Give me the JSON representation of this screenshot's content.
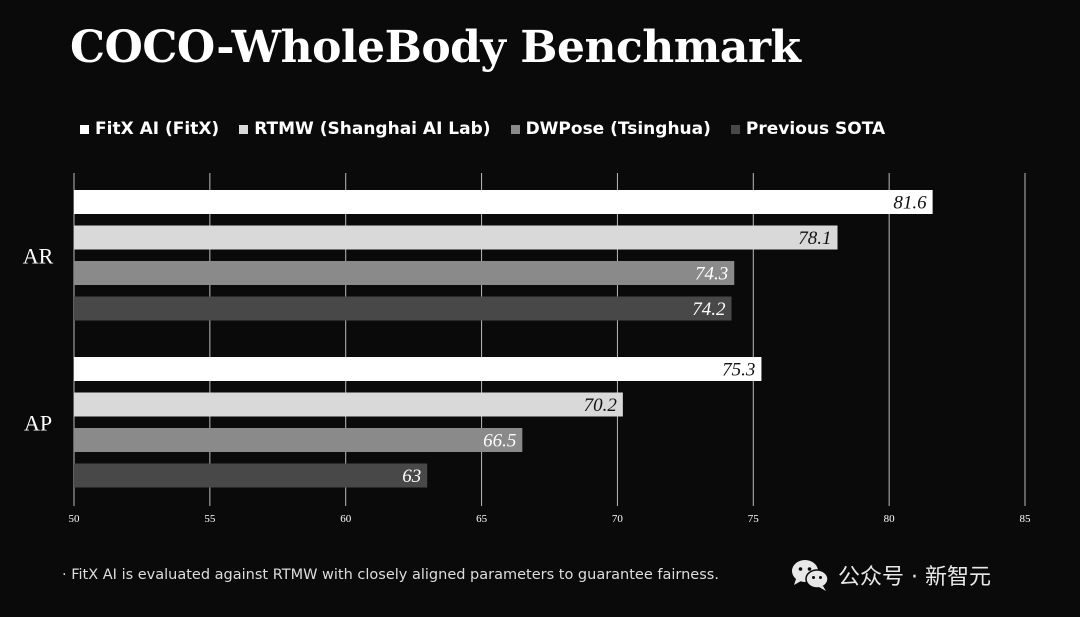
{
  "chart_data": {
    "type": "bar",
    "orientation": "horizontal",
    "title": "COCO-WholeBody Benchmark",
    "categories": [
      "AR",
      "AP"
    ],
    "series": [
      {
        "name": "FitX AI (FitX)",
        "color": "#ffffff",
        "label_color": "#111111",
        "values": [
          81.6,
          75.3
        ],
        "labels": [
          "81.6",
          "75.3"
        ]
      },
      {
        "name": "RTMW (Shanghai AI Lab)",
        "color": "#d9d9d9",
        "label_color": "#111111",
        "values": [
          78.1,
          70.2
        ],
        "labels": [
          "78.1",
          "70.2"
        ]
      },
      {
        "name": "DWPose (Tsinghua)",
        "color": "#8a8a8a",
        "label_color": "#ffffff",
        "values": [
          74.3,
          66.5
        ],
        "labels": [
          "74.3",
          "66.5"
        ]
      },
      {
        "name": "Previous SOTA",
        "color": "#484848",
        "label_color": "#ffffff",
        "values": [
          74.2,
          63
        ],
        "labels": [
          "74.2",
          "63"
        ]
      }
    ],
    "xlim": [
      50,
      85
    ],
    "xticks": [
      50,
      55,
      60,
      65,
      70,
      75,
      80,
      85
    ],
    "xtick_labels": [
      "50",
      "55",
      "60",
      "65",
      "70",
      "75",
      "80",
      "85"
    ],
    "grid": "vertical",
    "legend_position": "top"
  },
  "footnote": "· FitX AI is evaluated against RTMW with closely aligned parameters to guarantee fairness.",
  "watermark": {
    "text": "公众号 · 新智元",
    "icon": "wechat-icon"
  },
  "colors": {
    "background": "#0a0a0a",
    "gridline": "#bbbbbb"
  }
}
